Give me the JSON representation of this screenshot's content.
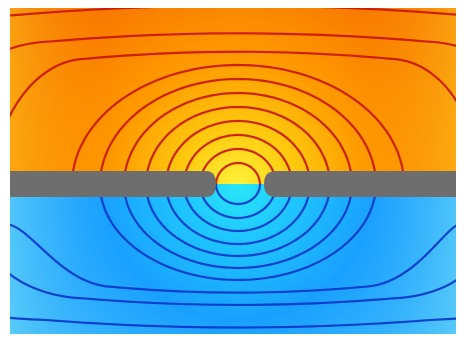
{
  "image": {
    "subject": "field-contour-plot",
    "colors": {
      "hot_edge": "#f25a00",
      "hot_mid": "#ff9a00",
      "hot_center": "#fff23a",
      "hot_contour": "#c81400",
      "cold_edge": "#56cafa",
      "cold_mid": "#19a0ff",
      "cold_center": "#29e7f7",
      "cold_contour": "#0a34c8",
      "barrier": "#6e6e6e"
    }
  }
}
